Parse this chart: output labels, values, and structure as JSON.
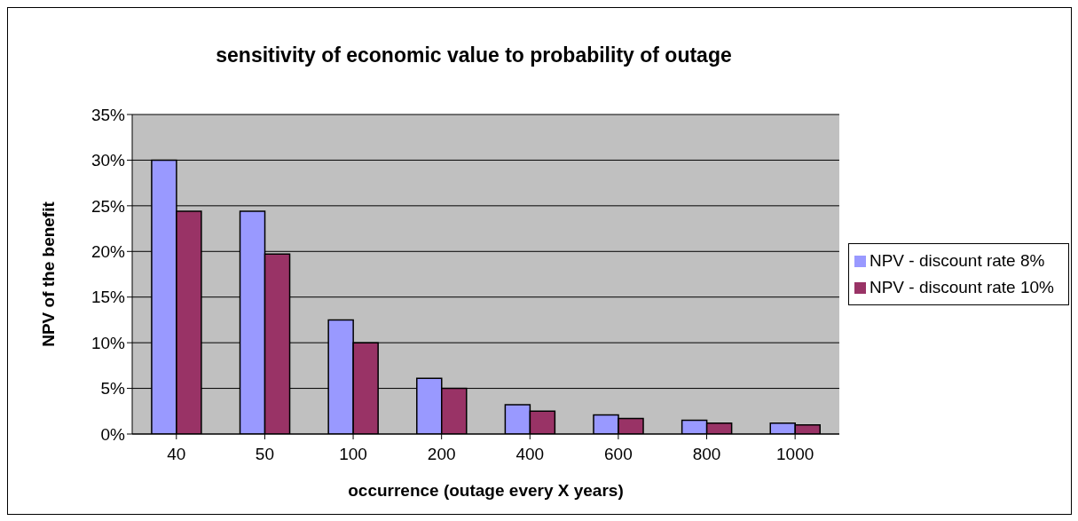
{
  "chart_data": {
    "type": "bar",
    "title": "sensitivity of economic value to probability of outage",
    "xlabel": "occurrence (outage every X years)",
    "ylabel": "NPV of the benefit",
    "categories": [
      "40",
      "50",
      "100",
      "200",
      "400",
      "600",
      "800",
      "1000"
    ],
    "series": [
      {
        "name": "NPV - discount rate 8%",
        "color": "#9999ff",
        "values": [
          30,
          24.4,
          12.5,
          6.1,
          3.2,
          2.1,
          1.5,
          1.2
        ]
      },
      {
        "name": "NPV - discount rate 10%",
        "color": "#993366",
        "values": [
          24.4,
          19.7,
          10,
          5,
          2.5,
          1.7,
          1.2,
          1.0
        ]
      }
    ],
    "ylim": [
      0,
      35
    ],
    "yticks": [
      {
        "value": 0,
        "label": "0%"
      },
      {
        "value": 5,
        "label": "5%"
      },
      {
        "value": 10,
        "label": "10%"
      },
      {
        "value": 15,
        "label": "15%"
      },
      {
        "value": 20,
        "label": "20%"
      },
      {
        "value": 25,
        "label": "25%"
      },
      {
        "value": 30,
        "label": "30%"
      },
      {
        "value": 35,
        "label": "35%"
      }
    ],
    "grid": "y",
    "legend": "right"
  }
}
